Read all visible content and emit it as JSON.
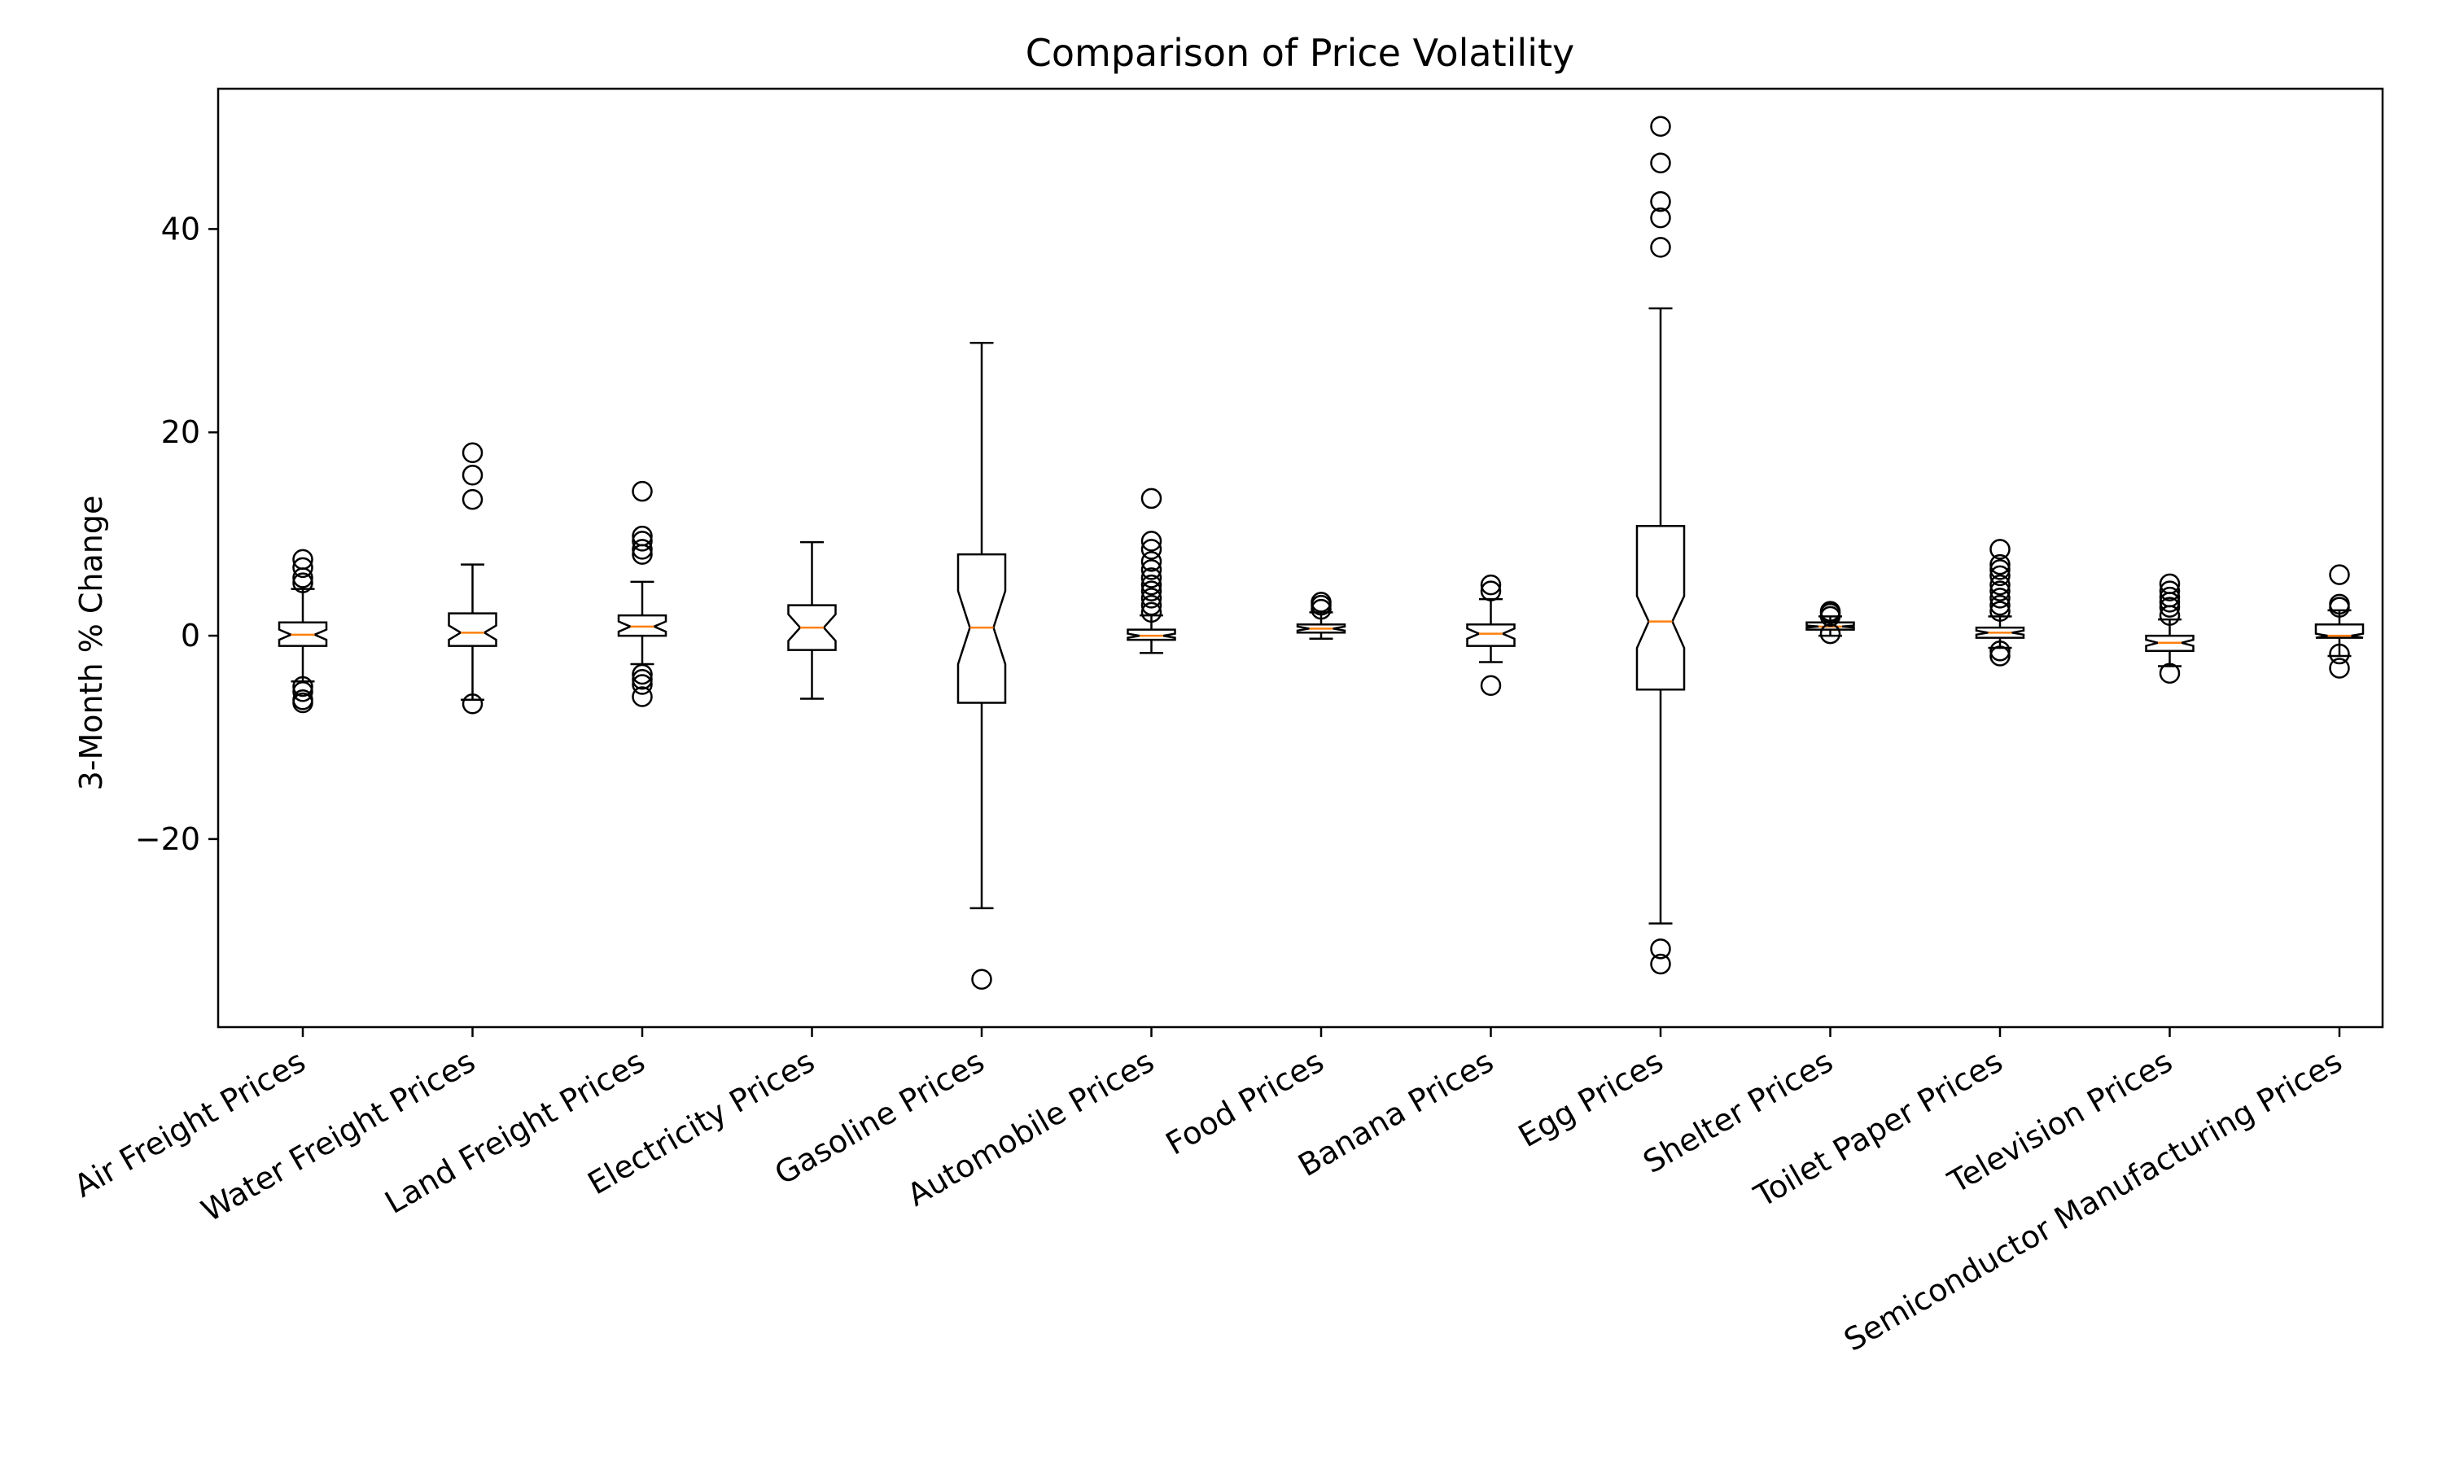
{
  "chart_data": {
    "type": "boxplot",
    "notched": true,
    "title": "Comparison of Price Volatility",
    "xlabel": "",
    "ylabel": "3-Month % Change",
    "ylim": [
      -38.5,
      53.8
    ],
    "yticks": [
      -20,
      0,
      20,
      40
    ],
    "ytick_labels": [
      "−20",
      "0",
      "20",
      "40"
    ],
    "grid": false,
    "legend": "none",
    "colors": {
      "box": "#000000",
      "median": "#ff7f0e",
      "flier": "#000000"
    },
    "categories": [
      "Air Freight Prices",
      "Water Freight Prices",
      "Land Freight Prices",
      "Electricity Prices",
      "Gasoline Prices",
      "Automobile Prices",
      "Food Prices",
      "Banana Prices",
      "Egg Prices",
      "Shelter Prices",
      "Toilet Paper Prices",
      "Television Prices",
      "Semiconductor Manufacturing Prices"
    ],
    "boxes": [
      {
        "q1": -1.0,
        "median": 0.1,
        "q3": 1.3,
        "whislo": -4.5,
        "whishi": 4.6,
        "notch": [
          -0.4,
          0.6
        ],
        "fliers": [
          5.2,
          5.7,
          6.7,
          7.5,
          -5.0,
          -5.5,
          -6.3,
          -6.6
        ]
      },
      {
        "q1": -1.0,
        "median": 0.3,
        "q3": 2.2,
        "whislo": -6.3,
        "whishi": 7.0,
        "notch": [
          -0.4,
          1.0
        ],
        "fliers": [
          13.4,
          15.8,
          18.0,
          -6.7
        ]
      },
      {
        "q1": 0.0,
        "median": 0.9,
        "q3": 2.0,
        "whislo": -2.8,
        "whishi": 5.3,
        "notch": [
          0.4,
          1.4
        ],
        "fliers": [
          8.0,
          8.5,
          9.3,
          9.8,
          14.2,
          -3.8,
          -4.3,
          -4.8,
          -6.0
        ]
      },
      {
        "q1": -1.4,
        "median": 0.8,
        "q3": 3.0,
        "whislo": -6.2,
        "whishi": 9.2,
        "notch": [
          -0.5,
          2.1
        ],
        "fliers": []
      },
      {
        "q1": -6.6,
        "median": 0.8,
        "q3": 8.0,
        "whislo": -26.8,
        "whishi": 28.8,
        "notch": [
          -2.8,
          4.4
        ],
        "fliers": [
          -33.8
        ]
      },
      {
        "q1": -0.4,
        "median": 0.0,
        "q3": 0.6,
        "whislo": -1.7,
        "whishi": 2.0,
        "notch": [
          -0.2,
          0.2
        ],
        "fliers": [
          2.3,
          3.0,
          3.7,
          4.4,
          5.0,
          5.7,
          6.5,
          7.3,
          8.5,
          9.3,
          13.5
        ]
      },
      {
        "q1": 0.3,
        "median": 0.7,
        "q3": 1.1,
        "whislo": -0.3,
        "whishi": 2.3,
        "notch": [
          0.5,
          0.9
        ],
        "fliers": [
          2.6,
          3.0,
          3.3
        ]
      },
      {
        "q1": -1.0,
        "median": 0.2,
        "q3": 1.1,
        "whislo": -2.6,
        "whishi": 3.6,
        "notch": [
          -0.3,
          0.7
        ],
        "fliers": [
          4.4,
          5.0,
          -4.9
        ]
      },
      {
        "q1": -5.3,
        "median": 1.4,
        "q3": 10.8,
        "whislo": -28.3,
        "whishi": 32.2,
        "notch": [
          -1.2,
          3.9
        ],
        "fliers": [
          38.2,
          41.1,
          42.7,
          46.5,
          50.1,
          -30.8,
          -32.3
        ]
      },
      {
        "q1": 0.6,
        "median": 0.9,
        "q3": 1.3,
        "whislo": 0.0,
        "whishi": 1.9,
        "notch": [
          0.8,
          1.0
        ],
        "fliers": [
          0.2,
          1.9,
          2.2,
          2.4
        ]
      },
      {
        "q1": -0.2,
        "median": 0.3,
        "q3": 0.8,
        "whislo": -1.2,
        "whishi": 1.9,
        "notch": [
          0.1,
          0.5
        ],
        "fliers": [
          2.4,
          3.0,
          3.7,
          4.4,
          5.0,
          5.9,
          6.5,
          7.0,
          8.5,
          -1.5,
          -2.0
        ]
      },
      {
        "q1": -1.5,
        "median": -0.7,
        "q3": 0.0,
        "whislo": -3.0,
        "whishi": 1.6,
        "notch": [
          -1.0,
          -0.4
        ],
        "fliers": [
          2.0,
          2.8,
          3.3,
          3.8,
          4.4,
          5.1,
          -3.7
        ]
      },
      {
        "q1": -0.2,
        "median": 0.0,
        "q3": 1.1,
        "whislo": -2.0,
        "whishi": 2.5,
        "notch": [
          -0.2,
          0.2
        ],
        "fliers": [
          2.8,
          3.1,
          6.0,
          -1.8,
          -3.2
        ]
      }
    ]
  }
}
